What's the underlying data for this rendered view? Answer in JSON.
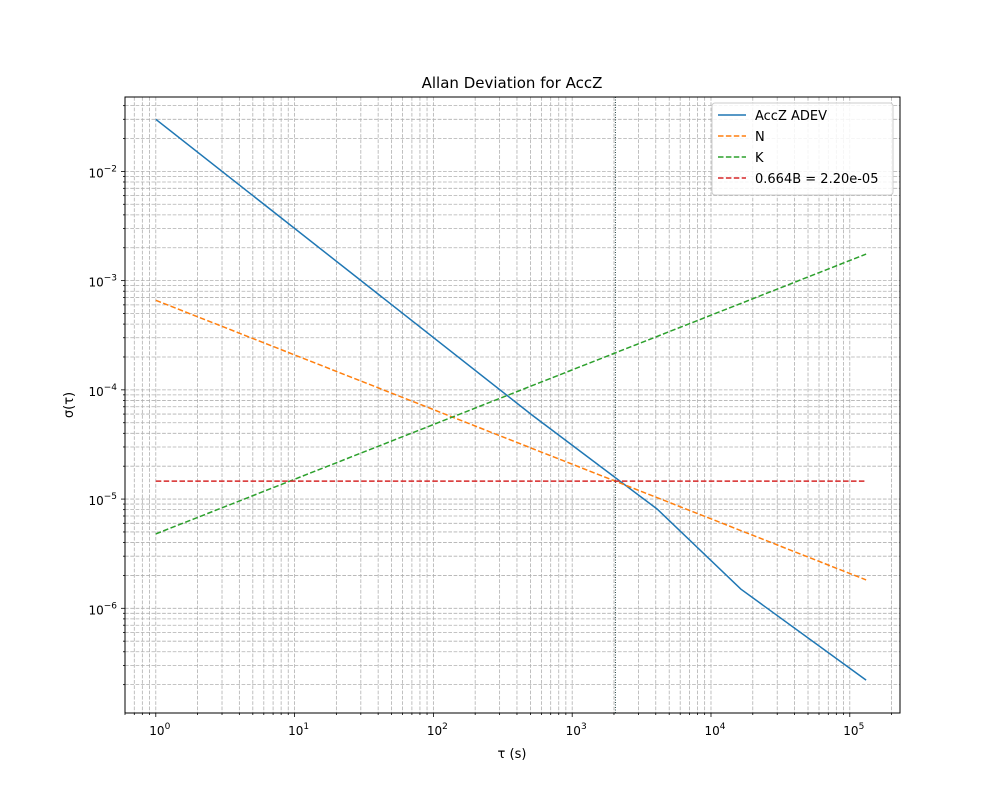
{
  "chart_data": {
    "type": "line",
    "title": "Allan Deviation for AccZ",
    "xlabel": "τ (s)",
    "ylabel": "σ(τ)",
    "x_scale": "log",
    "y_scale": "log",
    "xlim": [
      0.6,
      230000
    ],
    "ylim": [
      1.1e-07,
      0.048
    ],
    "grid": true,
    "legend_position": "top-right",
    "x_ticks": [
      {
        "base": "10",
        "exp": "0",
        "value": 1
      },
      {
        "base": "10",
        "exp": "1",
        "value": 10
      },
      {
        "base": "10",
        "exp": "2",
        "value": 100
      },
      {
        "base": "10",
        "exp": "3",
        "value": 1000
      },
      {
        "base": "10",
        "exp": "4",
        "value": 10000
      },
      {
        "base": "10",
        "exp": "5",
        "value": 100000
      }
    ],
    "y_ticks": [
      {
        "base": "10",
        "exp": "−2",
        "value": 0.01
      },
      {
        "base": "10",
        "exp": "−3",
        "value": 0.001
      },
      {
        "base": "10",
        "exp": "−4",
        "value": 0.0001
      },
      {
        "base": "10",
        "exp": "−5",
        "value": 1e-05
      },
      {
        "base": "10",
        "exp": "−6",
        "value": 1e-06
      }
    ],
    "series": [
      {
        "name": "AccZ ADEV",
        "color": "#1f77b4",
        "dash": "solid",
        "x": [
          1,
          512,
          4096,
          16384,
          131072
        ],
        "y": [
          0.03,
          5.9e-05,
          8.1e-06,
          1.5e-06,
          2.2e-07
        ]
      },
      {
        "name": "N",
        "color": "#ff7f0e",
        "dash": "dashed",
        "x": [
          1,
          131072
        ],
        "y": [
          0.00066,
          1.82e-06
        ]
      },
      {
        "name": "K",
        "color": "#2ca02c",
        "dash": "dashed",
        "x": [
          1,
          131072
        ],
        "y": [
          4.8e-06,
          0.00175
        ]
      },
      {
        "name": "0.664B = 2.20e-05",
        "color": "#d62728",
        "dash": "dashed",
        "x": [
          1,
          131072
        ],
        "y": [
          1.46e-05,
          1.46e-05
        ]
      }
    ],
    "vertical_line": {
      "x": 2048,
      "color": "#1f3f3f",
      "dash": "dotted"
    }
  }
}
